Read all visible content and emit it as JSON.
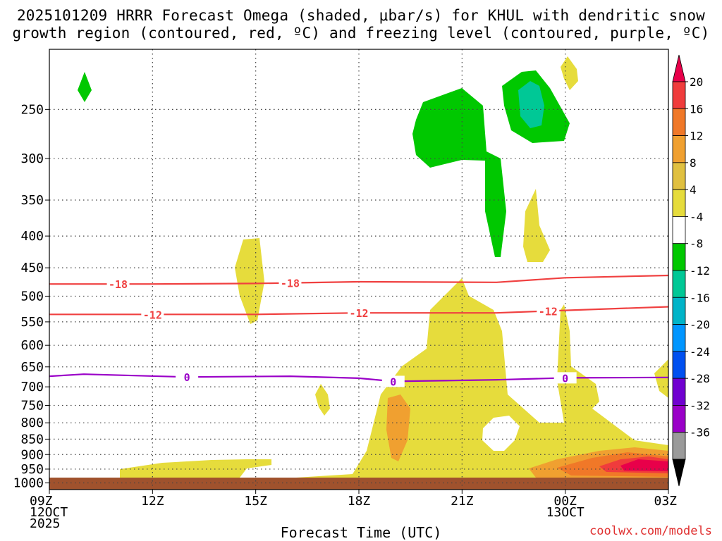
{
  "title_line1": "2025101209 HRRR Forecast Omega (shaded, μbar/s) for KHUL with dendritic snow",
  "title_line2": "growth region (contoured, red, ºC) and freezing level (contoured, purple, ºC)",
  "credit": "coolwx.com/models",
  "chart_data": {
    "type": "heatmap",
    "title": "2025101209 HRRR Forecast Omega (shaded, μbar/s) for KHUL with dendritic snow growth region (contoured, red, ºC) and freezing level (contoured, purple, ºC)",
    "xlabel": "Forecast Time (UTC)",
    "ylabel": "",
    "x_ticks": [
      {
        "hour": 0,
        "lines": [
          "09Z",
          "12OCT",
          "2025"
        ]
      },
      {
        "hour": 3,
        "lines": [
          "12Z"
        ]
      },
      {
        "hour": 6,
        "lines": [
          "15Z"
        ]
      },
      {
        "hour": 9,
        "lines": [
          "18Z"
        ]
      },
      {
        "hour": 12,
        "lines": [
          "21Z"
        ]
      },
      {
        "hour": 15,
        "lines": [
          "00Z",
          "13OCT"
        ]
      },
      {
        "hour": 18,
        "lines": [
          "03Z"
        ]
      }
    ],
    "xlim": [
      0,
      18
    ],
    "y_ticks": [
      250,
      300,
      350,
      400,
      450,
      500,
      550,
      600,
      650,
      700,
      750,
      800,
      850,
      900,
      950,
      1000
    ],
    "ylim": [
      200,
      1025
    ],
    "y_scale": "log",
    "y_reversed": true,
    "grid": true,
    "colorbar": {
      "labels": [
        "20",
        "16",
        "12",
        "8",
        "4",
        "-4",
        "-8",
        "-12",
        "-16",
        "-20",
        "-24",
        "-28",
        "-32",
        "-36"
      ],
      "colors": [
        "#e8004a",
        "#f03c3c",
        "#f07828",
        "#f0a030",
        "#e0c040",
        "#e6dc3c",
        "#ffffff",
        "#00c800",
        "#00c896",
        "#00b4c8",
        "#0096ff",
        "#0050f0",
        "#7000d0",
        "#9a00c8",
        "#9a9a9a",
        "#000000"
      ]
    },
    "contours": [
      {
        "name": "-18",
        "color": "#f04040",
        "points": [
          [
            0,
            478
          ],
          [
            3,
            478
          ],
          [
            6,
            477
          ],
          [
            9,
            474
          ],
          [
            13,
            475
          ],
          [
            15,
            467
          ],
          [
            18,
            463
          ]
        ],
        "labels_at": [
          2,
          7
        ]
      },
      {
        "name": "-12",
        "color": "#f04040",
        "points": [
          [
            0,
            535
          ],
          [
            3,
            535
          ],
          [
            6,
            535
          ],
          [
            9,
            532
          ],
          [
            13,
            532
          ],
          [
            15,
            527
          ],
          [
            18,
            520
          ]
        ],
        "labels_at": [
          3,
          9,
          14.5
        ]
      },
      {
        "name": "0",
        "color": "#9a00c8",
        "points": [
          [
            0,
            673
          ],
          [
            1,
            668
          ],
          [
            4,
            675
          ],
          [
            7,
            673
          ],
          [
            9,
            678
          ],
          [
            10,
            686
          ],
          [
            13,
            682
          ],
          [
            15,
            677
          ],
          [
            18,
            676
          ]
        ],
        "labels_at": [
          4,
          10,
          15
        ]
      }
    ],
    "shaded_regions": [
      {
        "range": "4 to 8",
        "approx_center": [
          11,
          700
        ]
      },
      {
        "range": "8 to 12",
        "approx_center": [
          10,
          850
        ]
      },
      {
        "range": "12 to 20",
        "approx_center": [
          16,
          960
        ]
      },
      {
        "range": "-4 to -8",
        "approx_center": [
          12.5,
          290
        ]
      },
      {
        "range": "-8 to -12",
        "approx_center": [
          14,
          265
        ]
      }
    ]
  }
}
